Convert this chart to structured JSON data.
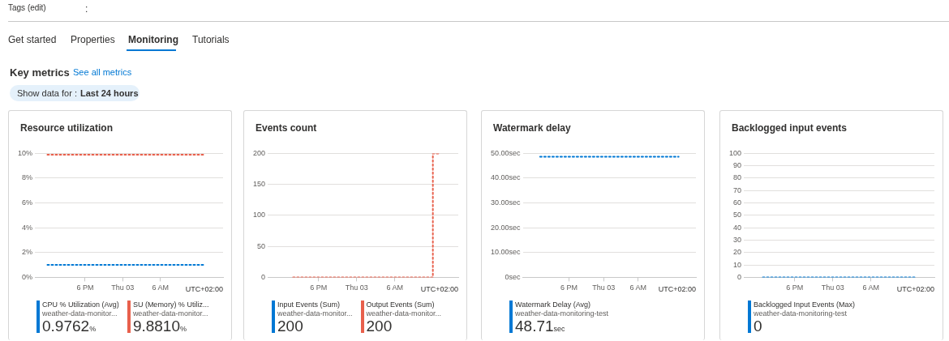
{
  "chart_data": [
    {
      "type": "other",
      "annotations": [
        "Tags (edit)",
        ":",
        "Get started",
        "Properties",
        "Monitoring",
        "Tutorials",
        "Key metrics",
        "See all metrics",
        "Show data for :",
        "Last 24 hours"
      ]
    },
    {
      "type": "line",
      "title": "Resource utilization",
      "xlabel": "UTC+02:00",
      "categories": [
        null,
        null,
        null,
        null,
        null,
        null,
        null,
        null,
        "6 PM",
        null,
        null,
        null,
        null,
        null,
        "Thu 03",
        null,
        null,
        null,
        null,
        null,
        "6 AM",
        null,
        null,
        null,
        null,
        null,
        null,
        null,
        null,
        null,
        null
      ],
      "ylim": [
        0,
        10
      ],
      "yticks": [
        {
          "value": 0,
          "label": "0%"
        },
        {
          "value": 2,
          "label": "2%"
        },
        {
          "value": 4,
          "label": "4%"
        },
        {
          "value": 6,
          "label": "6%"
        },
        {
          "value": 8,
          "label": "8%"
        },
        {
          "value": 10,
          "label": "10%"
        }
      ],
      "grid": "y",
      "legend": "bottom",
      "marker": "none",
      "line_style": "dotted",
      "series": [
        {
          "name": "CPU % Utilization (Avg)",
          "color": "#0078d4",
          "values": [
            null,
            null,
            1,
            1,
            1,
            1,
            1,
            1,
            1,
            1,
            1,
            1,
            1,
            1,
            1,
            1,
            1,
            1,
            1,
            1,
            1,
            1,
            1,
            1,
            1,
            1,
            1,
            1,
            null,
            null,
            null
          ]
        },
        {
          "name": "SU (Memory) % Utiliz...",
          "color": "#e8604c",
          "values": [
            null,
            null,
            9.9,
            9.9,
            9.9,
            9.9,
            9.9,
            9.9,
            9.9,
            9.9,
            9.9,
            9.9,
            9.9,
            9.9,
            9.9,
            9.9,
            9.9,
            9.9,
            9.9,
            9.9,
            9.9,
            9.9,
            9.9,
            9.9,
            9.9,
            9.9,
            9.9,
            9.9,
            null,
            null,
            null
          ]
        }
      ],
      "annotations": [
        "weather-data-monitor...",
        "0.9762%",
        "weather-data-monitor...",
        "9.8810%"
      ]
    },
    {
      "type": "line",
      "title": "Events count",
      "xlabel": "UTC+02:00",
      "categories": [
        null,
        null,
        null,
        null,
        null,
        null,
        null,
        null,
        "6 PM",
        null,
        null,
        null,
        null,
        null,
        "Thu 03",
        null,
        null,
        null,
        null,
        null,
        "6 AM",
        null,
        null,
        null,
        null,
        null,
        null,
        null,
        null,
        null,
        null
      ],
      "ylim": [
        0,
        200
      ],
      "yticks": [
        0,
        50,
        100,
        150,
        200
      ],
      "grid": "y",
      "legend": "bottom",
      "marker": "none",
      "line_style": "dotted",
      "series": [
        {
          "name": "Input Events (Sum)",
          "type": "step",
          "color": "#0078d4",
          "values": [
            null,
            null,
            null,
            null,
            null,
            null,
            null,
            null,
            null,
            null,
            null,
            null,
            null,
            null,
            null,
            null,
            null,
            null,
            null,
            null,
            null,
            null,
            null,
            null,
            null,
            null,
            null,
            null,
            null,
            null,
            null
          ]
        },
        {
          "name": "Output Events (Sum)",
          "type": "step",
          "color": "#e8604c",
          "values": [
            null,
            null,
            null,
            null,
            0,
            0,
            0,
            0,
            0,
            0,
            0,
            0,
            0,
            0,
            0,
            0,
            0,
            0,
            0,
            0,
            0,
            0,
            0,
            0,
            0,
            0,
            0,
            200,
            null,
            null,
            null
          ]
        }
      ],
      "annotations": [
        "weather-data-monitor...",
        "200",
        "weather-data-monitor...",
        "200"
      ]
    },
    {
      "type": "line",
      "title": "Watermark delay",
      "xlabel": "UTC+02:00",
      "categories": [
        null,
        null,
        null,
        null,
        null,
        null,
        null,
        null,
        "6 PM",
        null,
        null,
        null,
        null,
        null,
        "Thu 03",
        null,
        null,
        null,
        null,
        null,
        "6 AM",
        null,
        null,
        null,
        null,
        null,
        null,
        null,
        null,
        null,
        null
      ],
      "ylim": [
        0,
        50
      ],
      "yticks": [
        {
          "value": 0,
          "label": "0sec"
        },
        {
          "value": 10,
          "label": "10.00sec"
        },
        {
          "value": 20,
          "label": "20.00sec"
        },
        {
          "value": 30,
          "label": "30.00sec"
        },
        {
          "value": 40,
          "label": "40.00sec"
        },
        {
          "value": 50,
          "label": "50.00sec"
        }
      ],
      "grid": "y",
      "legend": "bottom",
      "marker": "none",
      "line_style": "dotted",
      "series": [
        {
          "name": "Watermark Delay (Avg)",
          "color": "#0078d4",
          "values": [
            null,
            null,
            null,
            48.7,
            48.7,
            48.7,
            48.7,
            48.7,
            48.7,
            48.7,
            48.7,
            48.7,
            48.7,
            48.7,
            48.7,
            48.7,
            48.7,
            48.7,
            48.7,
            48.7,
            48.7,
            48.7,
            48.7,
            48.7,
            48.7,
            48.7,
            48.7,
            48.7,
            null,
            null,
            null
          ]
        }
      ],
      "annotations": [
        "weather-data-monitoring-test",
        "48.71sec"
      ]
    },
    {
      "type": "line",
      "title": "Backlogged input events",
      "xlabel": "UTC+02:00",
      "categories": [
        null,
        null,
        null,
        null,
        null,
        null,
        null,
        null,
        "6 PM",
        null,
        null,
        null,
        null,
        null,
        "Thu 03",
        null,
        null,
        null,
        null,
        null,
        "6 AM",
        null,
        null,
        null,
        null,
        null,
        null,
        null,
        null,
        null,
        null
      ],
      "ylim": [
        0,
        100
      ],
      "yticks": [
        0,
        10,
        20,
        30,
        40,
        50,
        60,
        70,
        80,
        90,
        100
      ],
      "grid": "y",
      "legend": "bottom",
      "marker": "none",
      "line_style": "dotted",
      "series": [
        {
          "name": "Backlogged Input Events (Max)",
          "color": "#0078d4",
          "values": [
            null,
            null,
            null,
            0,
            0,
            0,
            0,
            0,
            0,
            0,
            0,
            0,
            0,
            0,
            0,
            0,
            0,
            0,
            0,
            0,
            0,
            0,
            0,
            0,
            0,
            0,
            0,
            0,
            null,
            null,
            null
          ]
        }
      ],
      "annotations": [
        "weather-data-monitoring-test",
        "0"
      ]
    }
  ]
}
